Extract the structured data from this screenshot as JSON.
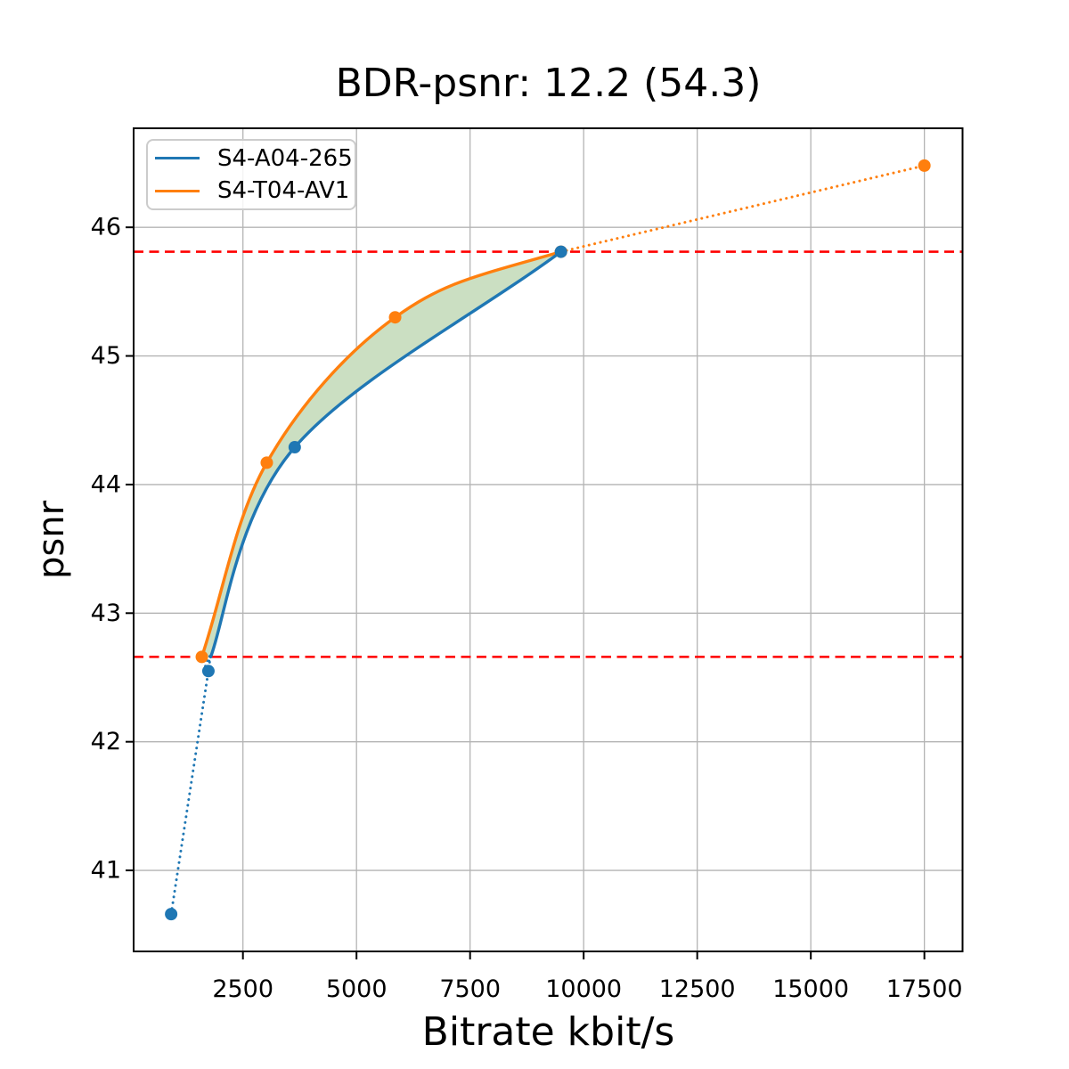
{
  "chart_data": {
    "type": "line",
    "title": "BDR-psnr: 12.2 (54.3)",
    "xlabel": "Bitrate kbit/s",
    "ylabel": "psnr",
    "xlim": [
      94,
      18340
    ],
    "ylim": [
      40.37,
      46.77
    ],
    "x_ticks": [
      2500,
      5000,
      7500,
      10000,
      12500,
      15000,
      17500
    ],
    "y_ticks": [
      41,
      42,
      43,
      44,
      45,
      46
    ],
    "grid": true,
    "grid_color": "#b4b4b4",
    "legend": {
      "position": "upper left",
      "entries": [
        "S4-A04-265",
        "S4-T04-AV1"
      ]
    },
    "series": [
      {
        "name": "S4-A04-265",
        "color": "#1f77b4",
        "points": [
          [
            920,
            40.66
          ],
          [
            1740,
            42.55
          ],
          [
            3640,
            44.29
          ],
          [
            9500,
            45.81
          ]
        ],
        "solid_points": [
          [
            1790,
            42.66
          ],
          [
            3640,
            44.29
          ],
          [
            9500,
            45.81
          ]
        ],
        "dotted_points": [
          [
            920,
            40.66
          ],
          [
            1740,
            42.55
          ],
          [
            1790,
            42.66
          ]
        ]
      },
      {
        "name": "S4-T04-AV1",
        "color": "#ff7f0e",
        "points": [
          [
            1595,
            42.66
          ],
          [
            3025,
            44.17
          ],
          [
            5850,
            45.3
          ],
          [
            9500,
            45.81
          ],
          [
            17500,
            46.48
          ]
        ],
        "solid_points": [
          [
            1595,
            42.66
          ],
          [
            3025,
            44.17
          ],
          [
            5850,
            45.3
          ],
          [
            9500,
            45.81
          ]
        ],
        "dotted_points": [
          [
            9500,
            45.81
          ],
          [
            17500,
            46.48
          ]
        ]
      }
    ],
    "hlines": [
      {
        "y": 45.81,
        "color": "#ff0000",
        "style": "dashed"
      },
      {
        "y": 42.66,
        "color": "#ff0000",
        "style": "dashed"
      }
    ],
    "fill_between": {
      "between": [
        "S4-T04-AV1",
        "S4-A04-265"
      ],
      "y_range": [
        42.66,
        45.81
      ],
      "color": "#cbdfc2"
    }
  }
}
